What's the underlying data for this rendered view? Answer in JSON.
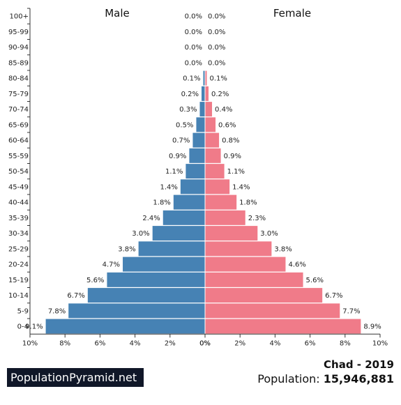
{
  "chart_data": {
    "type": "bar",
    "orientation": "horizontal-pyramid",
    "categories": [
      "100+",
      "95-99",
      "90-94",
      "85-89",
      "80-84",
      "75-79",
      "70-74",
      "65-69",
      "60-64",
      "55-59",
      "50-54",
      "45-49",
      "40-44",
      "35-39",
      "30-34",
      "25-29",
      "20-24",
      "15-19",
      "10-14",
      "5-9",
      "0-4"
    ],
    "series": [
      {
        "name": "Male",
        "color": "#4682b4",
        "values": [
          0.0,
          0.0,
          0.0,
          0.0,
          0.1,
          0.2,
          0.3,
          0.5,
          0.7,
          0.9,
          1.1,
          1.4,
          1.8,
          2.4,
          3.0,
          3.8,
          4.7,
          5.6,
          6.7,
          7.8,
          9.1
        ],
        "labels": [
          "0.0%",
          "0.0%",
          "0.0%",
          "0.0%",
          "0.1%",
          "0.2%",
          "0.3%",
          "0.5%",
          "0.7%",
          "0.9%",
          "1.1%",
          "1.4%",
          "1.8%",
          "2.4%",
          "3.0%",
          "3.8%",
          "4.7%",
          "5.6%",
          "6.7%",
          "7.8%",
          "9.1%"
        ]
      },
      {
        "name": "Female",
        "color": "#f07b89",
        "values": [
          0.0,
          0.0,
          0.0,
          0.0,
          0.1,
          0.2,
          0.4,
          0.6,
          0.8,
          0.9,
          1.1,
          1.4,
          1.8,
          2.3,
          3.0,
          3.8,
          4.6,
          5.6,
          6.7,
          7.7,
          8.9
        ],
        "labels": [
          "0.0%",
          "0.0%",
          "0.0%",
          "0.0%",
          "0.1%",
          "0.2%",
          "0.4%",
          "0.6%",
          "0.8%",
          "0.9%",
          "1.1%",
          "1.4%",
          "1.8%",
          "2.3%",
          "3.0%",
          "3.8%",
          "4.6%",
          "5.6%",
          "6.7%",
          "7.7%",
          "8.9%"
        ]
      }
    ],
    "xlim": [
      0,
      10
    ],
    "xticks_left": [
      "10%",
      "8%",
      "6%",
      "4%",
      "2%",
      "0%"
    ],
    "xticks_right": [
      "0%",
      "2%",
      "4%",
      "6%",
      "8%",
      "10%"
    ],
    "xtick_values": [
      10,
      8,
      6,
      4,
      2,
      0
    ]
  },
  "footer": {
    "brand": "PopulationPyramid.net",
    "country_year": "Chad - 2019",
    "population_label": "Population:",
    "population_value": "15,946,881"
  }
}
